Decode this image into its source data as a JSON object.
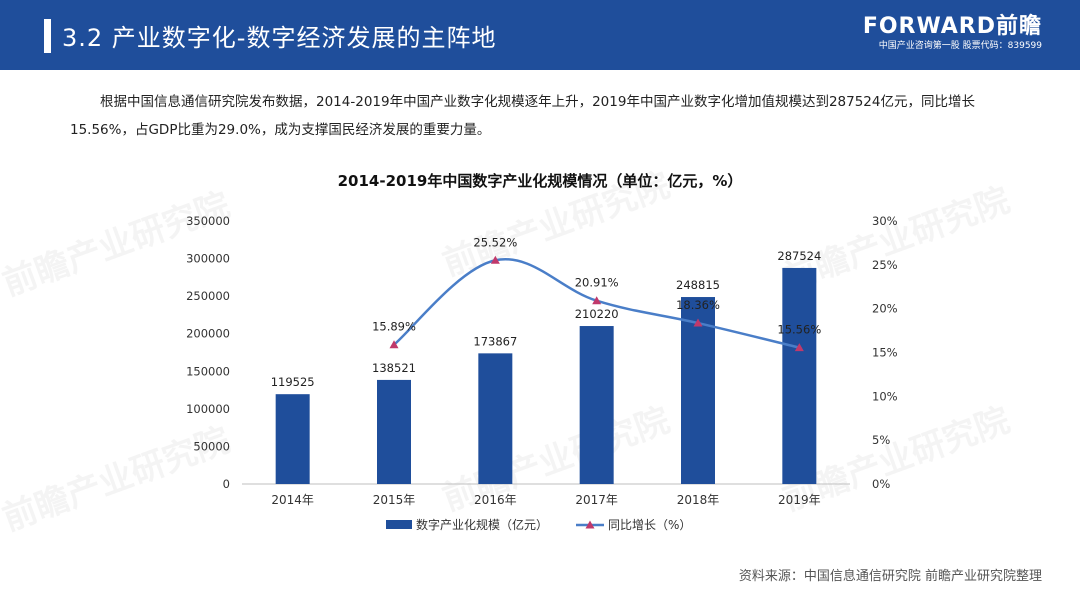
{
  "header": {
    "title": "3.2 产业数字化-数字经济发展的主阵地",
    "logo_text": "FORWARD前瞻",
    "logo_subtext": "中国产业咨询第一股 股票代码：839599"
  },
  "intro": {
    "text": "根据中国信息通信研究院发布数据，2014-2019年中国产业数字化规模逐年上升，2019年中国产业数字化增加值规模达到287524亿元，同比增长15.56%，占GDP比重为29.0%，成为支撑国民经济发展的重要力量。"
  },
  "watermark": "前瞻产业研究院",
  "chart_data": {
    "type": "bar",
    "title": "2014-2019年中国数字产业化规模情况（单位：亿元，%）",
    "categories": [
      "2014年",
      "2015年",
      "2016年",
      "2017年",
      "2018年",
      "2019年"
    ],
    "series": [
      {
        "name": "数字产业化规模（亿元）",
        "type": "bar",
        "axis": "left",
        "values": [
          119525,
          138521,
          173867,
          210220,
          248815,
          287524
        ],
        "labels": [
          "119525",
          "138521",
          "173867",
          "210220",
          "248815",
          "287524"
        ],
        "color": "#1f4e9b"
      },
      {
        "name": "同比增长（%）",
        "type": "line",
        "axis": "right",
        "values": [
          null,
          15.89,
          25.52,
          20.91,
          18.36,
          15.56
        ],
        "labels": [
          "",
          "15.89%",
          "25.52%",
          "20.91%",
          "18.36%",
          "15.56%"
        ],
        "color": "#4a7ec8",
        "marker_color": "#c0396b"
      }
    ],
    "y_left": {
      "min": 0,
      "max": 350000,
      "step": 50000,
      "ticks": [
        "0",
        "50000",
        "100000",
        "150000",
        "200000",
        "250000",
        "300000",
        "350000"
      ]
    },
    "y_right": {
      "min": 0,
      "max": 30,
      "step": 5,
      "ticks": [
        "0%",
        "5%",
        "10%",
        "15%",
        "20%",
        "25%",
        "30%"
      ]
    },
    "legend": {
      "position": "bottom"
    },
    "grid": false
  },
  "source": "资料来源：中国信息通信研究院 前瞻产业研究院整理"
}
